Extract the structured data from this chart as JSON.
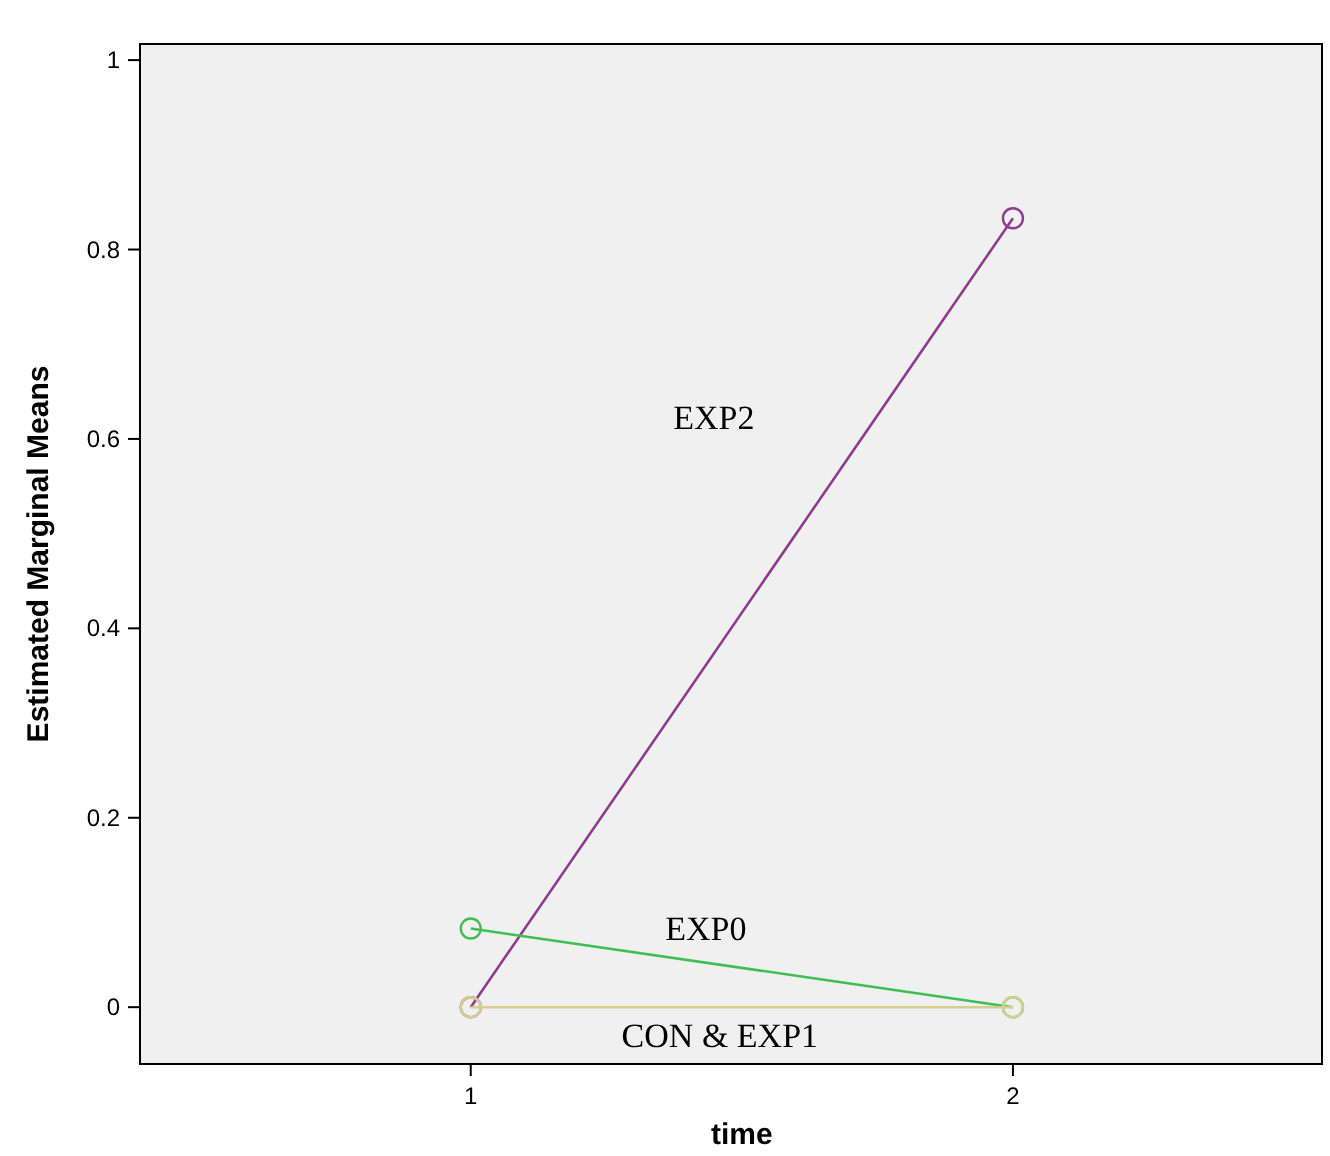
{
  "chart_data": {
    "type": "line",
    "xlabel": "time",
    "ylabel": "Estimated Marginal Means",
    "x": [
      1,
      2
    ],
    "xlim": [
      0.39,
      2.57
    ],
    "xticks": [
      1,
      2
    ],
    "ylim": [
      -0.06,
      1.017
    ],
    "yticks": [
      0,
      0.2,
      0.4,
      0.6,
      0.8,
      1
    ],
    "marker": "circle",
    "grid": false,
    "series": [
      {
        "name": "EXP2",
        "color": "#8e3a8e",
        "values": [
          0,
          0.833
        ]
      },
      {
        "name": "EXP0",
        "color": "#3fbf52",
        "values": [
          0.083,
          0
        ]
      },
      {
        "name": "CON & EXP1",
        "color": "#d4d08c",
        "values": [
          0,
          0
        ]
      }
    ]
  }
}
